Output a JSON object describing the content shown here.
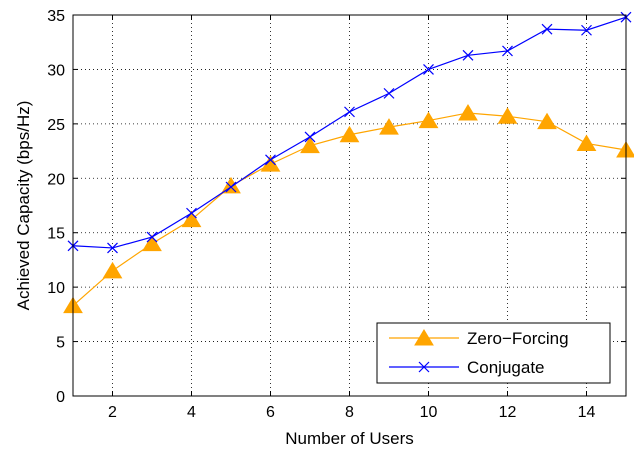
{
  "chart_data": {
    "type": "line",
    "title": "",
    "xlabel": "Number of Users",
    "ylabel": "Achieved Capacity (bps/Hz)",
    "xlim": [
      1,
      15
    ],
    "ylim": [
      0,
      35
    ],
    "xticks": [
      2,
      4,
      6,
      8,
      10,
      12,
      14
    ],
    "yticks": [
      0,
      5,
      10,
      15,
      20,
      25,
      30,
      35
    ],
    "grid": true,
    "legend_position": "bottom-right",
    "x": [
      1,
      2,
      3,
      4,
      5,
      6,
      7,
      8,
      9,
      10,
      11,
      12,
      13,
      14,
      15
    ],
    "series": [
      {
        "name": "Zero−Forcing",
        "color": "#FFA500",
        "marker": "triangle",
        "values": [
          8.3,
          11.5,
          14.0,
          16.2,
          19.3,
          21.3,
          23.0,
          24.0,
          24.7,
          25.3,
          26.0,
          25.7,
          25.2,
          23.2,
          22.6
        ]
      },
      {
        "name": "Conjugate",
        "color": "#0000FF",
        "marker": "x",
        "values": [
          13.8,
          13.6,
          14.6,
          16.8,
          19.2,
          21.7,
          23.8,
          26.1,
          27.8,
          30.0,
          31.3,
          31.7,
          33.7,
          33.6,
          34.8
        ]
      }
    ]
  }
}
